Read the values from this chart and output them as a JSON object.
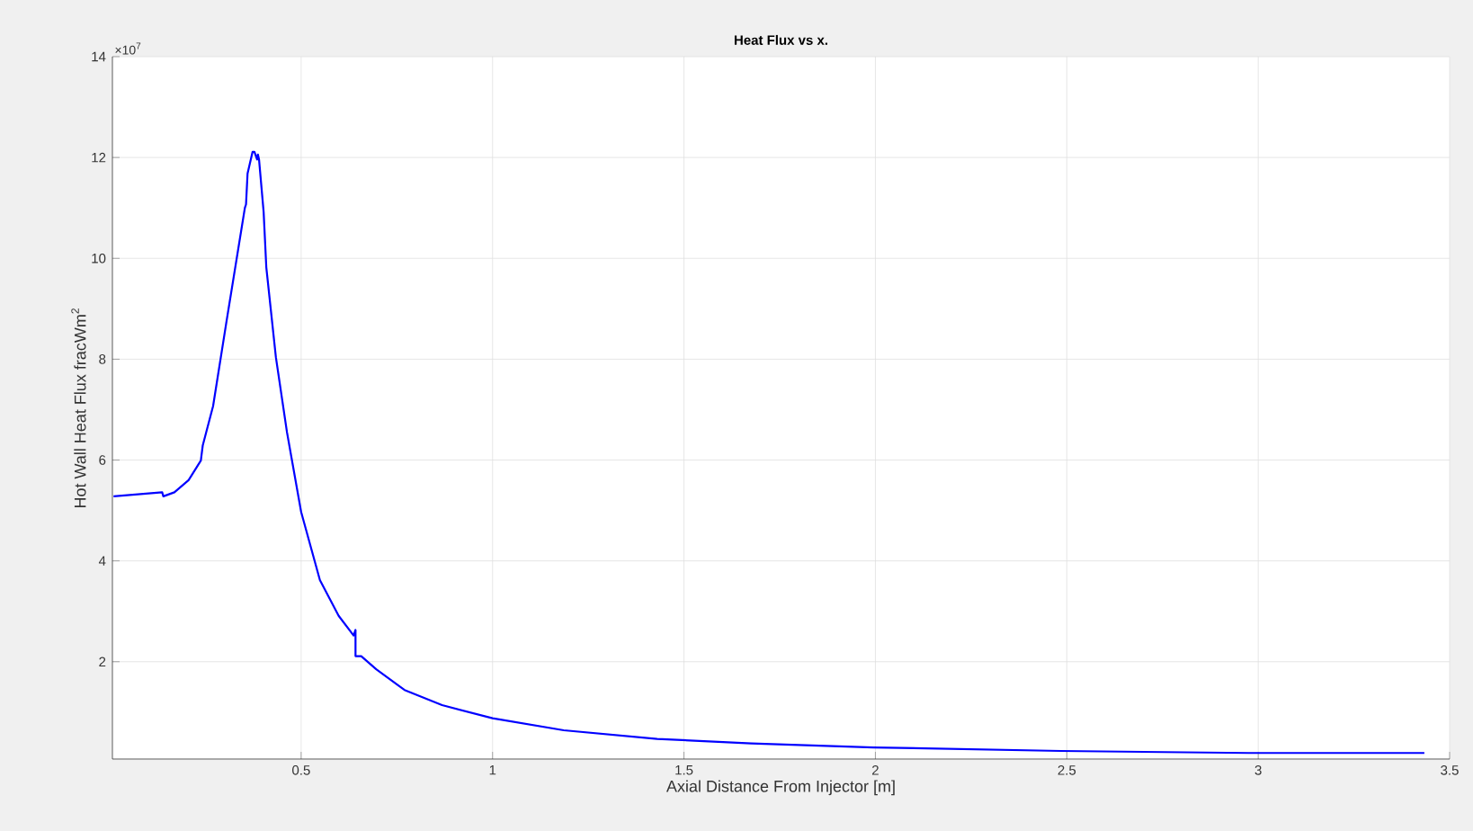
{
  "chart_data": {
    "type": "line",
    "title": "Heat Flux vs x.",
    "xlabel": "Axial Distance From Injector [m]",
    "ylabel": "Hot Wall Heat Flux fracWm$^{2}$",
    "annotations": [
      "×10$^{7}$"
    ],
    "xlim": [
      0.007,
      3.5
    ],
    "xticks": [
      0.5,
      1,
      1.5,
      2,
      2.5,
      3,
      3.5
    ],
    "ylim": [
      0.07,
      14
    ],
    "yticks": [
      2,
      4,
      6,
      8,
      10,
      12,
      14
    ],
    "grid": true,
    "marker": "none",
    "line_style": "solid",
    "series": [
      {
        "color": "#0000ff",
        "x": [
          0.01,
          0.137,
          0.14,
          0.169,
          0.206,
          0.238,
          0.243,
          0.27,
          0.304,
          0.353,
          0.356,
          0.36,
          0.373,
          0.378,
          0.385,
          0.387,
          0.39,
          0.402,
          0.409,
          0.434,
          0.463,
          0.5,
          0.549,
          0.598,
          0.637,
          0.642,
          0.642,
          0.657,
          0.696,
          0.77,
          0.868,
          1.0,
          1.186,
          1.43,
          1.676,
          1.995,
          2.485,
          2.975,
          3.434
        ],
        "values": [
          5.28,
          5.36,
          5.28,
          5.36,
          5.6,
          5.99,
          6.29,
          7.07,
          8.7,
          11.0,
          11.07,
          11.68,
          12.11,
          12.11,
          11.96,
          12.06,
          11.96,
          10.92,
          9.82,
          8.04,
          6.55,
          4.97,
          3.62,
          2.91,
          2.52,
          2.63,
          2.11,
          2.11,
          1.85,
          1.44,
          1.14,
          0.88,
          0.64,
          0.47,
          0.38,
          0.3,
          0.23,
          0.19,
          0.19
        ]
      }
    ]
  }
}
